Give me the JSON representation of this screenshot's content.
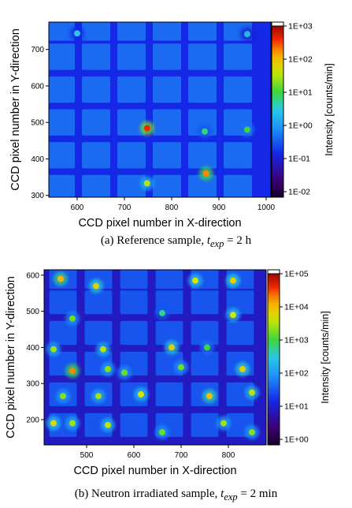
{
  "chart_data": [
    {
      "type": "heatmap",
      "panel": "a",
      "caption_prefix": "(a) Reference sample,",
      "caption_var": "t",
      "caption_sub": "exp",
      "caption_suffix": "= 2 h",
      "xlabel": "CCD pixel number in X-direction",
      "ylabel": "CCD pixel number in Y-direction",
      "colorbar_label": "Intensity [counts/min]",
      "xlim": [
        540,
        1010
      ],
      "ylim": [
        295,
        775
      ],
      "xticks": [
        600,
        700,
        800,
        900,
        1000
      ],
      "yticks": [
        300,
        400,
        500,
        600,
        700
      ],
      "colorbar_ticks": [
        "1E+03",
        "1E+02",
        "1E+01",
        "1E+00",
        "1E-01",
        "1E-02"
      ],
      "log_range": [
        -2,
        3
      ],
      "background_log": -0.75,
      "grid": {
        "cols": [
          565,
          640,
          715,
          790,
          865,
          940
        ],
        "rows": [
          320,
          410,
          500,
          590,
          680,
          760
        ],
        "cell": [
          60,
          72
        ]
      },
      "hotspots": [
        {
          "x": 748,
          "y": 484,
          "log": 2.5
        },
        {
          "x": 870,
          "y": 475,
          "log": 0.8
        },
        {
          "x": 960,
          "y": 480,
          "log": 1.0
        },
        {
          "x": 748,
          "y": 333,
          "log": 1.5
        },
        {
          "x": 873,
          "y": 360,
          "log": 2.2
        },
        {
          "x": 600,
          "y": 744,
          "log": 0.5
        },
        {
          "x": 960,
          "y": 742,
          "log": 0.3
        }
      ]
    },
    {
      "type": "heatmap",
      "panel": "b",
      "caption_prefix": "(b) Neutron irradiated sample,",
      "caption_var": "t",
      "caption_sub": "exp",
      "caption_suffix": "= 2 min",
      "xlabel": "CCD pixel number in X-direction",
      "ylabel": "CCD pixel number in Y-direction",
      "colorbar_label": "Intensity [counts/min]",
      "xlim": [
        410,
        880
      ],
      "ylim": [
        130,
        615
      ],
      "xticks": [
        500,
        600,
        700,
        800
      ],
      "yticks": [
        200,
        300,
        400,
        500,
        600
      ],
      "colorbar_ticks": [
        "1E+05",
        "1E+04",
        "1E+03",
        "1E+02",
        "1E+01",
        "1E+00"
      ],
      "log_range": [
        0,
        5
      ],
      "background_log": 1.0,
      "grid": {
        "cols": [
          450,
          525,
          600,
          675,
          750,
          825
        ],
        "rows": [
          185,
          270,
          355,
          440,
          525,
          595
        ],
        "cell": [
          58,
          66
        ]
      },
      "hotspots": [
        {
          "x": 445,
          "y": 590,
          "log": 4.0
        },
        {
          "x": 520,
          "y": 570,
          "log": 3.8
        },
        {
          "x": 730,
          "y": 585,
          "log": 3.6
        },
        {
          "x": 810,
          "y": 585,
          "log": 3.8
        },
        {
          "x": 470,
          "y": 480,
          "log": 3.2
        },
        {
          "x": 660,
          "y": 495,
          "log": 2.8
        },
        {
          "x": 810,
          "y": 490,
          "log": 3.6
        },
        {
          "x": 430,
          "y": 395,
          "log": 3.4
        },
        {
          "x": 535,
          "y": 395,
          "log": 3.5
        },
        {
          "x": 680,
          "y": 400,
          "log": 3.8
        },
        {
          "x": 755,
          "y": 400,
          "log": 3.0
        },
        {
          "x": 470,
          "y": 335,
          "log": 4.2
        },
        {
          "x": 545,
          "y": 340,
          "log": 3.3
        },
        {
          "x": 580,
          "y": 330,
          "log": 3.2
        },
        {
          "x": 700,
          "y": 345,
          "log": 3.2
        },
        {
          "x": 830,
          "y": 340,
          "log": 3.8
        },
        {
          "x": 450,
          "y": 265,
          "log": 3.3
        },
        {
          "x": 525,
          "y": 265,
          "log": 3.4
        },
        {
          "x": 615,
          "y": 270,
          "log": 3.6
        },
        {
          "x": 760,
          "y": 265,
          "log": 3.9
        },
        {
          "x": 850,
          "y": 275,
          "log": 3.5
        },
        {
          "x": 430,
          "y": 190,
          "log": 3.7
        },
        {
          "x": 470,
          "y": 190,
          "log": 3.4
        },
        {
          "x": 545,
          "y": 185,
          "log": 3.5
        },
        {
          "x": 660,
          "y": 165,
          "log": 3.2
        },
        {
          "x": 790,
          "y": 190,
          "log": 3.4
        },
        {
          "x": 850,
          "y": 165,
          "log": 3.3
        }
      ]
    }
  ]
}
